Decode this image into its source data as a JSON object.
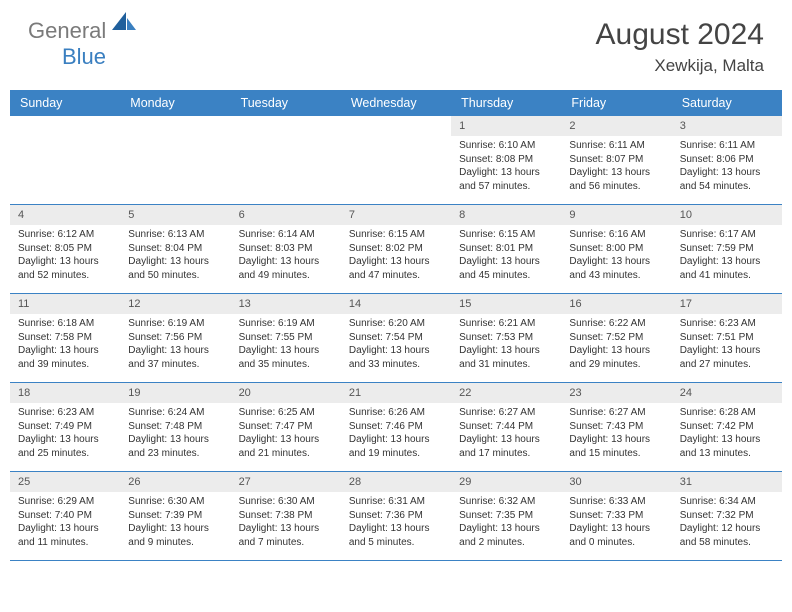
{
  "brand": {
    "part1": "General",
    "part2": "Blue"
  },
  "title": "August 2024",
  "location": "Xewkija, Malta",
  "colors": {
    "header_bg": "#3b82c4",
    "header_text": "#ffffff",
    "daynum_bg": "#ececec",
    "border": "#3b82c4",
    "logo_gray": "#7a7a7a",
    "logo_blue": "#3a7fc0"
  },
  "day_names": [
    "Sunday",
    "Monday",
    "Tuesday",
    "Wednesday",
    "Thursday",
    "Friday",
    "Saturday"
  ],
  "weeks": [
    [
      {
        "n": "",
        "empty": true
      },
      {
        "n": "",
        "empty": true
      },
      {
        "n": "",
        "empty": true
      },
      {
        "n": "",
        "empty": true
      },
      {
        "n": "1",
        "sunrise": "Sunrise: 6:10 AM",
        "sunset": "Sunset: 8:08 PM",
        "daylight": "Daylight: 13 hours and 57 minutes."
      },
      {
        "n": "2",
        "sunrise": "Sunrise: 6:11 AM",
        "sunset": "Sunset: 8:07 PM",
        "daylight": "Daylight: 13 hours and 56 minutes."
      },
      {
        "n": "3",
        "sunrise": "Sunrise: 6:11 AM",
        "sunset": "Sunset: 8:06 PM",
        "daylight": "Daylight: 13 hours and 54 minutes."
      }
    ],
    [
      {
        "n": "4",
        "sunrise": "Sunrise: 6:12 AM",
        "sunset": "Sunset: 8:05 PM",
        "daylight": "Daylight: 13 hours and 52 minutes."
      },
      {
        "n": "5",
        "sunrise": "Sunrise: 6:13 AM",
        "sunset": "Sunset: 8:04 PM",
        "daylight": "Daylight: 13 hours and 50 minutes."
      },
      {
        "n": "6",
        "sunrise": "Sunrise: 6:14 AM",
        "sunset": "Sunset: 8:03 PM",
        "daylight": "Daylight: 13 hours and 49 minutes."
      },
      {
        "n": "7",
        "sunrise": "Sunrise: 6:15 AM",
        "sunset": "Sunset: 8:02 PM",
        "daylight": "Daylight: 13 hours and 47 minutes."
      },
      {
        "n": "8",
        "sunrise": "Sunrise: 6:15 AM",
        "sunset": "Sunset: 8:01 PM",
        "daylight": "Daylight: 13 hours and 45 minutes."
      },
      {
        "n": "9",
        "sunrise": "Sunrise: 6:16 AM",
        "sunset": "Sunset: 8:00 PM",
        "daylight": "Daylight: 13 hours and 43 minutes."
      },
      {
        "n": "10",
        "sunrise": "Sunrise: 6:17 AM",
        "sunset": "Sunset: 7:59 PM",
        "daylight": "Daylight: 13 hours and 41 minutes."
      }
    ],
    [
      {
        "n": "11",
        "sunrise": "Sunrise: 6:18 AM",
        "sunset": "Sunset: 7:58 PM",
        "daylight": "Daylight: 13 hours and 39 minutes."
      },
      {
        "n": "12",
        "sunrise": "Sunrise: 6:19 AM",
        "sunset": "Sunset: 7:56 PM",
        "daylight": "Daylight: 13 hours and 37 minutes."
      },
      {
        "n": "13",
        "sunrise": "Sunrise: 6:19 AM",
        "sunset": "Sunset: 7:55 PM",
        "daylight": "Daylight: 13 hours and 35 minutes."
      },
      {
        "n": "14",
        "sunrise": "Sunrise: 6:20 AM",
        "sunset": "Sunset: 7:54 PM",
        "daylight": "Daylight: 13 hours and 33 minutes."
      },
      {
        "n": "15",
        "sunrise": "Sunrise: 6:21 AM",
        "sunset": "Sunset: 7:53 PM",
        "daylight": "Daylight: 13 hours and 31 minutes."
      },
      {
        "n": "16",
        "sunrise": "Sunrise: 6:22 AM",
        "sunset": "Sunset: 7:52 PM",
        "daylight": "Daylight: 13 hours and 29 minutes."
      },
      {
        "n": "17",
        "sunrise": "Sunrise: 6:23 AM",
        "sunset": "Sunset: 7:51 PM",
        "daylight": "Daylight: 13 hours and 27 minutes."
      }
    ],
    [
      {
        "n": "18",
        "sunrise": "Sunrise: 6:23 AM",
        "sunset": "Sunset: 7:49 PM",
        "daylight": "Daylight: 13 hours and 25 minutes."
      },
      {
        "n": "19",
        "sunrise": "Sunrise: 6:24 AM",
        "sunset": "Sunset: 7:48 PM",
        "daylight": "Daylight: 13 hours and 23 minutes."
      },
      {
        "n": "20",
        "sunrise": "Sunrise: 6:25 AM",
        "sunset": "Sunset: 7:47 PM",
        "daylight": "Daylight: 13 hours and 21 minutes."
      },
      {
        "n": "21",
        "sunrise": "Sunrise: 6:26 AM",
        "sunset": "Sunset: 7:46 PM",
        "daylight": "Daylight: 13 hours and 19 minutes."
      },
      {
        "n": "22",
        "sunrise": "Sunrise: 6:27 AM",
        "sunset": "Sunset: 7:44 PM",
        "daylight": "Daylight: 13 hours and 17 minutes."
      },
      {
        "n": "23",
        "sunrise": "Sunrise: 6:27 AM",
        "sunset": "Sunset: 7:43 PM",
        "daylight": "Daylight: 13 hours and 15 minutes."
      },
      {
        "n": "24",
        "sunrise": "Sunrise: 6:28 AM",
        "sunset": "Sunset: 7:42 PM",
        "daylight": "Daylight: 13 hours and 13 minutes."
      }
    ],
    [
      {
        "n": "25",
        "sunrise": "Sunrise: 6:29 AM",
        "sunset": "Sunset: 7:40 PM",
        "daylight": "Daylight: 13 hours and 11 minutes."
      },
      {
        "n": "26",
        "sunrise": "Sunrise: 6:30 AM",
        "sunset": "Sunset: 7:39 PM",
        "daylight": "Daylight: 13 hours and 9 minutes."
      },
      {
        "n": "27",
        "sunrise": "Sunrise: 6:30 AM",
        "sunset": "Sunset: 7:38 PM",
        "daylight": "Daylight: 13 hours and 7 minutes."
      },
      {
        "n": "28",
        "sunrise": "Sunrise: 6:31 AM",
        "sunset": "Sunset: 7:36 PM",
        "daylight": "Daylight: 13 hours and 5 minutes."
      },
      {
        "n": "29",
        "sunrise": "Sunrise: 6:32 AM",
        "sunset": "Sunset: 7:35 PM",
        "daylight": "Daylight: 13 hours and 2 minutes."
      },
      {
        "n": "30",
        "sunrise": "Sunrise: 6:33 AM",
        "sunset": "Sunset: 7:33 PM",
        "daylight": "Daylight: 13 hours and 0 minutes."
      },
      {
        "n": "31",
        "sunrise": "Sunrise: 6:34 AM",
        "sunset": "Sunset: 7:32 PM",
        "daylight": "Daylight: 12 hours and 58 minutes."
      }
    ]
  ]
}
